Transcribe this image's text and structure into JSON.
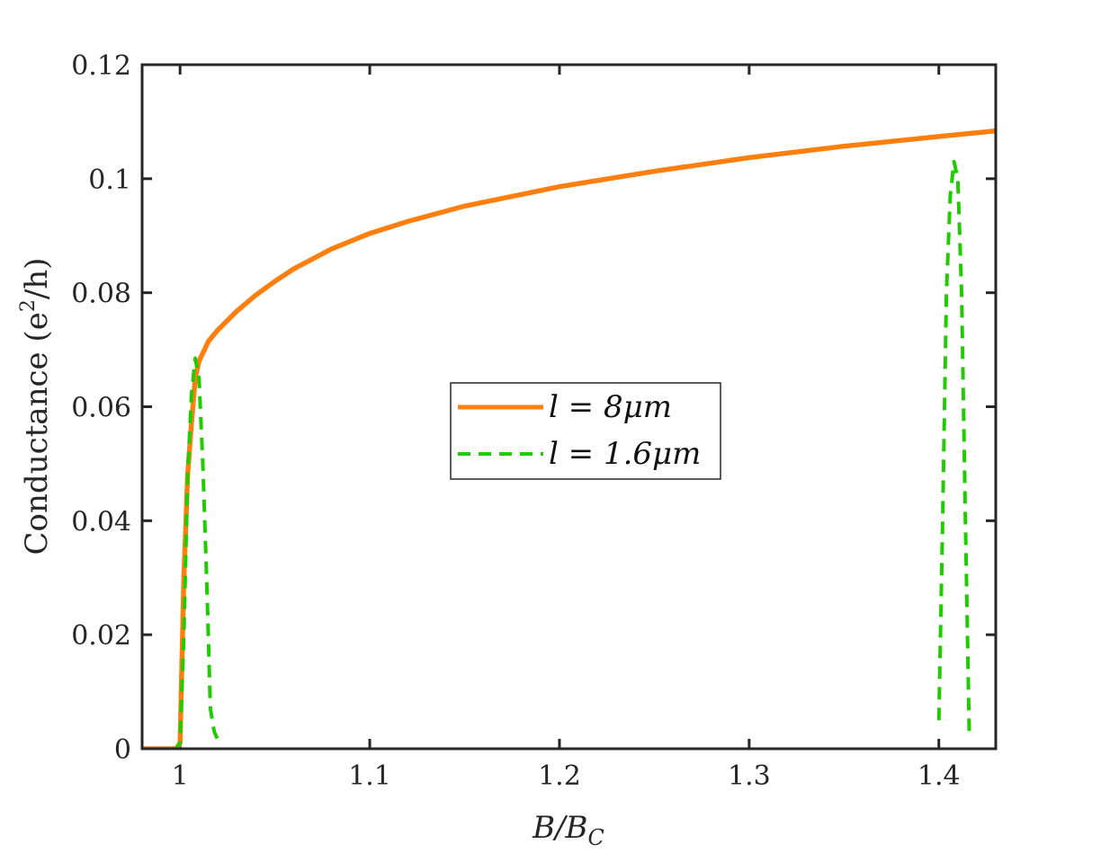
{
  "chart_data": {
    "type": "line",
    "title": "",
    "xlabel": "B/B_C",
    "ylabel": "Conductance (e^2/h)",
    "xlabel_parts": {
      "main": "B/B",
      "sub": "C"
    },
    "ylabel_parts": {
      "pre": "Conductance (e",
      "sup": "2",
      "post": "/h)"
    },
    "xlim": [
      0.98,
      1.43
    ],
    "ylim": [
      0,
      0.12
    ],
    "xticks": [
      1,
      1.1,
      1.2,
      1.3,
      1.4
    ],
    "xtick_labels": [
      "1",
      "1.1",
      "1.2",
      "1.3",
      "1.4"
    ],
    "yticks": [
      0,
      0.02,
      0.04,
      0.06,
      0.08,
      0.1,
      0.12
    ],
    "ytick_labels": [
      "0",
      "0.02",
      "0.04",
      "0.06",
      "0.08",
      "0.1",
      "0.12"
    ],
    "grid": false,
    "legend_position": "center",
    "series": [
      {
        "name": "l = 8μm",
        "color": "#ff7f0e",
        "style": "solid",
        "x": [
          0.98,
          0.998,
          1.0,
          1.002,
          1.004,
          1.006,
          1.008,
          1.01,
          1.015,
          1.02,
          1.03,
          1.04,
          1.05,
          1.06,
          1.08,
          1.1,
          1.12,
          1.15,
          1.2,
          1.25,
          1.3,
          1.35,
          1.4,
          1.43
        ],
        "y": [
          0,
          0,
          0.001,
          0.03,
          0.048,
          0.057,
          0.065,
          0.068,
          0.0715,
          0.0735,
          0.0768,
          0.0796,
          0.082,
          0.0842,
          0.0877,
          0.0904,
          0.0925,
          0.0952,
          0.0986,
          0.1013,
          0.1037,
          0.1057,
          0.1074,
          0.1084
        ]
      },
      {
        "name": "l = 1.6μm",
        "color": "#1fcc00",
        "style": "dashed",
        "segments": [
          {
            "x": [
              0.996,
              0.998,
              1.0,
              1.002,
              1.004,
              1.006,
              1.008,
              1.01,
              1.012,
              1.014,
              1.016,
              1.018,
              1.02
            ],
            "y": [
              0,
              0,
              0.001,
              0.02,
              0.048,
              0.062,
              0.0685,
              0.065,
              0.05,
              0.03,
              0.007,
              0.003,
              0.0015
            ]
          },
          {
            "x": [
              1.4,
              1.402,
              1.404,
              1.406,
              1.408,
              1.41,
              1.412,
              1.414,
              1.416
            ],
            "y": [
              0.005,
              0.04,
              0.08,
              0.097,
              0.103,
              0.1,
              0.08,
              0.04,
              0.003
            ]
          }
        ]
      }
    ]
  }
}
